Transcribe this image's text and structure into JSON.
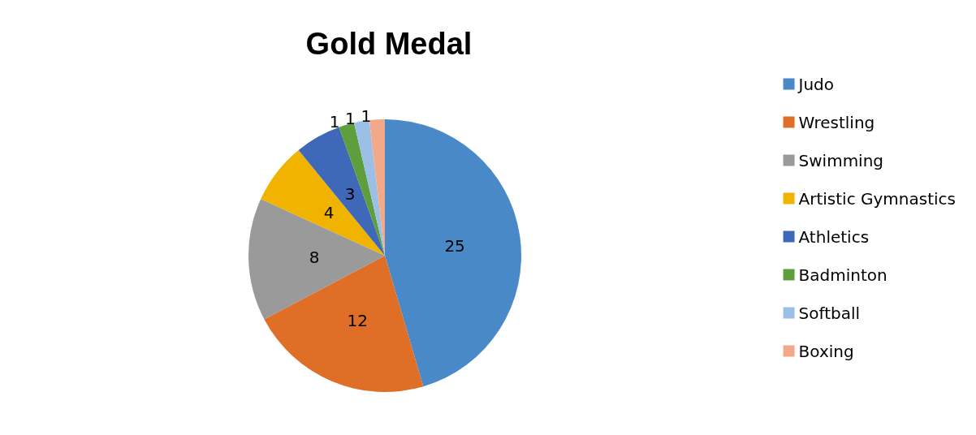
{
  "chart_data": {
    "type": "pie",
    "title": "Gold Medal",
    "categories": [
      "Judo",
      "Wrestling",
      "Swimming",
      "Artistic Gymnastics",
      "Athletics",
      "Badminton",
      "Softball",
      "Boxing"
    ],
    "values": [
      25,
      12,
      8,
      4,
      3,
      1,
      1,
      1
    ],
    "colors": [
      "#4a89c8",
      "#df6e26",
      "#9a9a9a",
      "#f0b400",
      "#3f68b8",
      "#5f9e3c",
      "#9cbfe6",
      "#f2a98a"
    ],
    "data_labels": true,
    "legend": "right"
  }
}
